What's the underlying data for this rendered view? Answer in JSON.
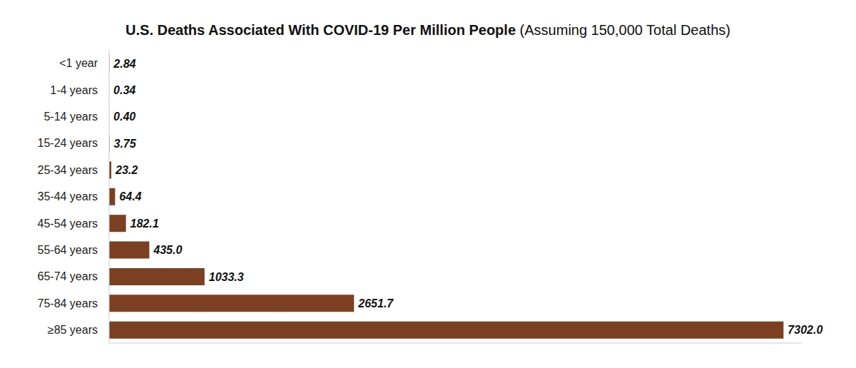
{
  "chart_data": {
    "type": "bar",
    "title": "U.S. Deaths Associated With COVID-19 Per Million People",
    "subtitle": "(Assuming 150,000 Total Deaths)",
    "orientation": "horizontal",
    "categories": [
      "<1 year",
      "1-4 years",
      "5-14 years",
      "15-24 years",
      "25-34 years",
      "35-44 years",
      "45-54 years",
      "55-64 years",
      "65-74 years",
      "75-84 years",
      "≥85 years"
    ],
    "values": [
      2.84,
      0.34,
      0.4,
      3.75,
      23.2,
      64.4,
      182.1,
      435.0,
      1033.3,
      2651.7,
      7302.0
    ],
    "value_labels": [
      "2.84",
      "0.34",
      "0.40",
      "3.75",
      "23.2",
      "64.4",
      "182.1",
      "435.0",
      "1033.3",
      "2651.7",
      "7302.0"
    ],
    "color": "#7b3f22",
    "xlim": [
      0,
      7500
    ],
    "xticks": [],
    "grid": false,
    "data_labels": true,
    "tick_labels": "y"
  }
}
